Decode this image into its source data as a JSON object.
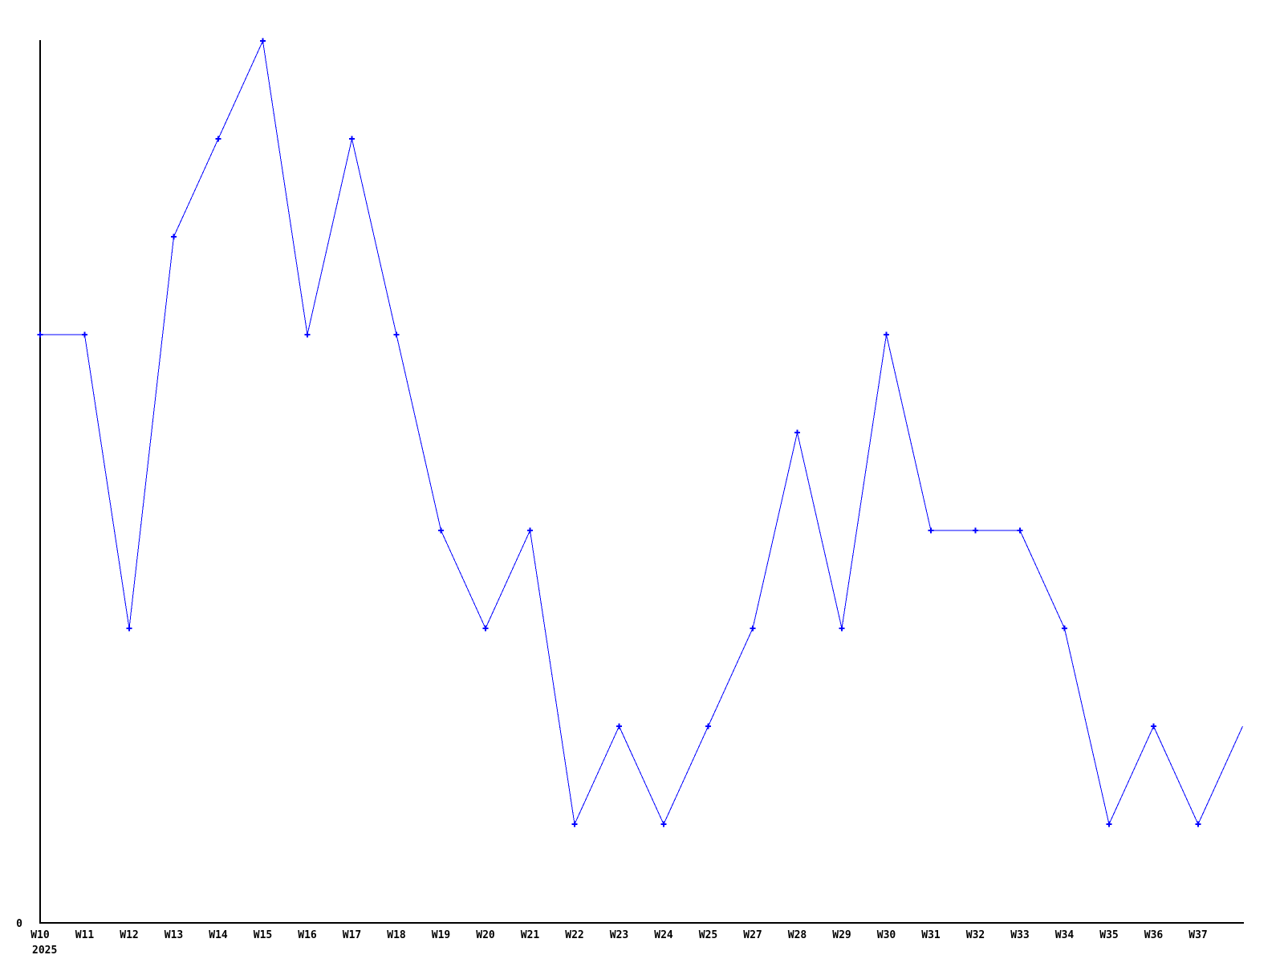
{
  "chart_data": {
    "type": "line",
    "title": "",
    "xlabel": "",
    "ylabel": "",
    "y_zero_label": "0",
    "year_label": "2025",
    "categories": [
      "W10",
      "W11",
      "W12",
      "W13",
      "W14",
      "W15",
      "W16",
      "W17",
      "W18",
      "W19",
      "W20",
      "W21",
      "W22",
      "W23",
      "W24",
      "W25",
      "W27",
      "W28",
      "W29",
      "W30",
      "W31",
      "W32",
      "W33",
      "W34",
      "W35",
      "W36",
      "W37"
    ],
    "values": [
      6,
      6,
      3,
      7,
      8,
      9,
      6,
      8,
      6,
      4,
      3,
      4,
      1,
      2,
      1,
      2,
      3,
      5,
      3,
      6,
      4,
      4,
      4,
      3,
      1,
      2,
      1
    ],
    "trailing_point": {
      "label": "",
      "value": 2,
      "has_marker": false
    },
    "ylim": [
      0,
      9
    ],
    "grid": false,
    "legend": false,
    "marker": "plus",
    "series_color": "#0000ff",
    "axis_color": "#000000",
    "background_color": "#ffffff"
  }
}
